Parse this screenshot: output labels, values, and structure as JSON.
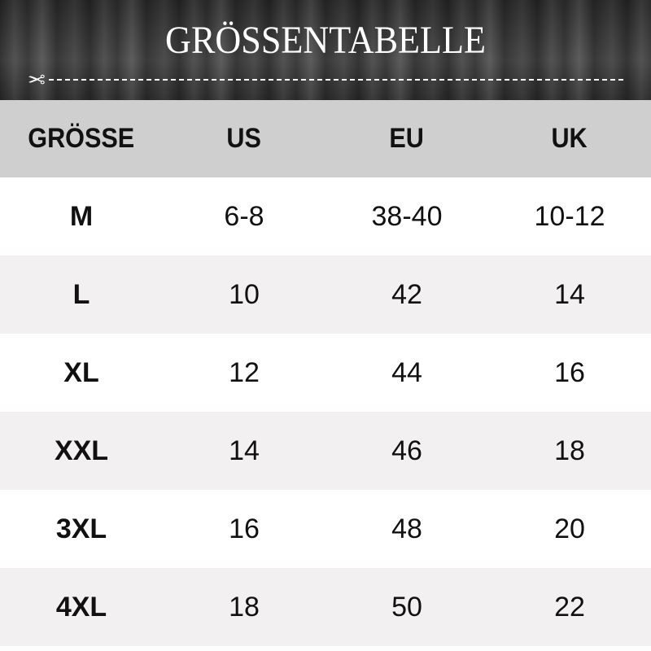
{
  "title": "GRÖSSENTABELLE",
  "icons": {
    "scissors": "scissors-icon"
  },
  "headers": [
    "GRÖSSE",
    "US",
    "EU",
    "UK"
  ],
  "rows": [
    [
      "M",
      "6-8",
      "38-40",
      "10-12"
    ],
    [
      "L",
      "10",
      "42",
      "14"
    ],
    [
      "XL",
      "12",
      "44",
      "16"
    ],
    [
      "XXL",
      "14",
      "46",
      "18"
    ],
    [
      "3XL",
      "16",
      "48",
      "20"
    ],
    [
      "4XL",
      "18",
      "50",
      "22"
    ]
  ]
}
